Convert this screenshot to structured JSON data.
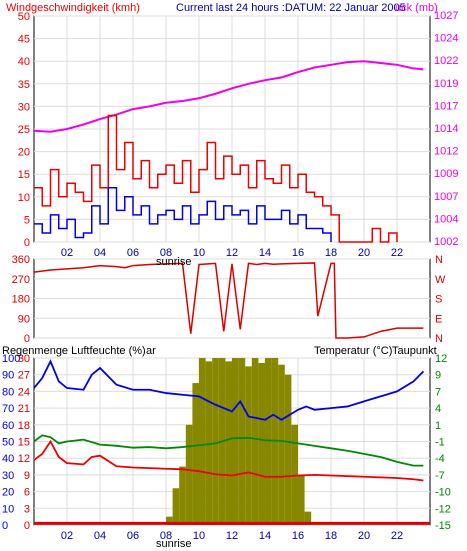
{
  "colors": {
    "wind_avg": "#0000ee",
    "wind_gust": "#ee0000",
    "pressure": "#ee00ee",
    "direction": "#dd0000",
    "humidity": "#0000ee",
    "temperature": "#008800",
    "dewpoint": "#ee0000",
    "rain": "#dd0000",
    "solar": "#888800",
    "grid": "#ffffff",
    "bg": "#ffffff",
    "frame": "#000000"
  },
  "header": {
    "top_left": "Windgeschwindigkeit (kmh)",
    "top_center": "Current last 24 hours :DATUM: 22 Januar 2005",
    "top_right": "uck (mb)"
  },
  "sunrise_label": "sunrise",
  "chart_data": [
    {
      "type": "line",
      "id": "wind_pressure",
      "title": "Windgeschwindigkeit (kmh)",
      "right_title": "uck (mb)",
      "x_ticks": [
        "02",
        "04",
        "06",
        "08",
        "10",
        "12",
        "14",
        "16",
        "18",
        "20",
        "22"
      ],
      "y_left_ticks": [
        "0",
        "5",
        "10",
        "15",
        "20",
        "25",
        "30",
        "35",
        "40",
        "45",
        "50"
      ],
      "y_left_range": [
        0,
        50
      ],
      "y_right_ticks": [
        "1002",
        "1004",
        "1007",
        "1009",
        "1012",
        "1014",
        "1017",
        "1019",
        "1022",
        "1024",
        "1027"
      ],
      "y_right_range": [
        1002,
        1027
      ],
      "x_range": [
        0,
        24
      ],
      "series": [
        {
          "key": "pressure",
          "axis": "right",
          "x": [
            0.0,
            1.0,
            2.0,
            3.0,
            4.0,
            5.0,
            6.0,
            7.0,
            8.0,
            9.0,
            10.0,
            11.0,
            12.0,
            13.0,
            14.0,
            15.0,
            16.0,
            17.0,
            18.0,
            19.0,
            20.0,
            21.0,
            22.0,
            23.0,
            23.6
          ],
          "y": [
            1014.3,
            1014.2,
            1014.5,
            1015.0,
            1015.6,
            1016.1,
            1016.7,
            1017.0,
            1017.4,
            1017.6,
            1017.9,
            1018.4,
            1019.0,
            1019.5,
            1019.9,
            1020.2,
            1020.8,
            1021.3,
            1021.6,
            1021.9,
            1022.0,
            1021.8,
            1021.6,
            1021.2,
            1021.1
          ]
        },
        {
          "key": "wind_gust",
          "axis": "left",
          "style": "step",
          "x": [
            0.0,
            0.5,
            1.0,
            1.5,
            2.0,
            2.5,
            3.0,
            3.5,
            4.0,
            4.5,
            5.0,
            5.5,
            6.0,
            6.5,
            7.0,
            7.5,
            8.0,
            8.5,
            9.0,
            9.5,
            10.0,
            10.5,
            11.0,
            11.5,
            12.0,
            12.5,
            13.0,
            13.5,
            14.0,
            14.5,
            15.0,
            15.5,
            16.0,
            16.5,
            17.0,
            17.5,
            18.0,
            18.5,
            19.0,
            19.5,
            20.0,
            20.5,
            21.0,
            21.5,
            22.0
          ],
          "y": [
            12,
            8,
            16,
            10,
            13,
            11,
            9,
            17,
            12,
            28,
            16,
            22,
            14,
            18,
            12,
            15,
            17,
            13,
            18,
            11,
            16,
            22,
            14,
            19,
            15,
            17,
            12,
            18,
            14,
            13,
            17,
            12,
            15,
            11,
            10,
            8,
            6,
            0,
            0,
            0,
            0,
            3,
            0,
            2,
            0
          ]
        },
        {
          "key": "wind_avg",
          "axis": "left",
          "style": "step",
          "x": [
            0.0,
            0.5,
            1.0,
            1.5,
            2.0,
            2.5,
            3.0,
            3.5,
            4.0,
            4.5,
            5.0,
            5.5,
            6.0,
            6.5,
            7.0,
            7.5,
            8.0,
            8.5,
            9.0,
            9.5,
            10.0,
            10.5,
            11.0,
            11.5,
            12.0,
            12.5,
            13.0,
            13.5,
            14.0,
            14.5,
            15.0,
            15.5,
            16.0,
            16.5,
            17.0,
            17.5,
            18.0
          ],
          "y": [
            4,
            2,
            6,
            3,
            5,
            1,
            2,
            8,
            4,
            12,
            7,
            10,
            6,
            8,
            4,
            6,
            7,
            5,
            8,
            4,
            6,
            9,
            5,
            8,
            6,
            7,
            4,
            8,
            5,
            5,
            7,
            4,
            6,
            3,
            3,
            2,
            0
          ]
        }
      ]
    },
    {
      "type": "line",
      "id": "direction",
      "y_left_ticks": [
        "0",
        "90",
        "180",
        "270",
        "360"
      ],
      "y_left_range": [
        0,
        360
      ],
      "y_right_ticks": [
        "N",
        "W",
        "S",
        "E",
        "N"
      ],
      "y_right_ticks_order": "top-to-bottom",
      "x_range": [
        0,
        24
      ],
      "series": [
        {
          "key": "direction",
          "x": [
            0.0,
            1.0,
            2.0,
            3.0,
            4.0,
            5.0,
            5.5,
            6.0,
            7.0,
            8.0,
            9.0,
            9.5,
            10.0,
            11.0,
            11.5,
            12.0,
            12.5,
            13.0,
            13.5,
            14.0,
            14.5,
            15.0,
            16.0,
            17.0,
            17.2,
            18.0,
            18.2,
            18.3,
            19.0,
            20.0,
            21.0,
            22.0,
            23.0,
            23.6
          ],
          "y": [
            300,
            310,
            315,
            320,
            330,
            325,
            320,
            330,
            335,
            338,
            340,
            20,
            335,
            340,
            30,
            338,
            40,
            340,
            335,
            340,
            336,
            338,
            340,
            342,
            100,
            340,
            340,
            0,
            0,
            5,
            30,
            45,
            45,
            45
          ]
        }
      ]
    },
    {
      "type": "line",
      "id": "humidity_temp",
      "title_left": "Regenmenge Luftfeuchte (%)",
      "title_left_overlay": "ar",
      "title_right": "Temperatur (°C)",
      "title_right2": "Taupunkt",
      "y_left_ticks_outer": [
        "0",
        "10",
        "20",
        "30",
        "40",
        "50",
        "60",
        "70",
        "80",
        "90",
        "100"
      ],
      "y_left_ticks_inner": [
        "0",
        "3",
        "6",
        "9",
        "12",
        "15",
        "18",
        "21",
        "24",
        "27",
        "30"
      ],
      "y_left_range": [
        0,
        100
      ],
      "y_right_ticks": [
        "-15",
        "-12",
        "-10",
        "-7",
        "-4",
        "-1",
        "1",
        "4",
        "7",
        "9",
        "12"
      ],
      "y_right_range": [
        -15,
        12
      ],
      "x_ticks": [
        "02",
        "04",
        "06",
        "08",
        "10",
        "12",
        "14",
        "16",
        "18",
        "20",
        "22"
      ],
      "x_range": [
        0,
        24
      ],
      "series": [
        {
          "key": "humidity",
          "axis": "left",
          "x": [
            0.0,
            0.5,
            1.0,
            1.5,
            2.0,
            3.0,
            3.5,
            4.0,
            5.0,
            6.0,
            7.0,
            8.0,
            9.0,
            10.0,
            11.0,
            12.0,
            12.5,
            13.0,
            14.0,
            14.5,
            15.0,
            16.0,
            16.5,
            17.0,
            18.0,
            19.0,
            20.0,
            21.0,
            22.0,
            23.0,
            23.6
          ],
          "y": [
            82,
            88,
            98,
            86,
            82,
            81,
            90,
            94,
            84,
            81,
            81,
            79,
            78,
            77,
            72,
            68,
            74,
            65,
            63,
            66,
            63,
            69,
            71,
            69,
            70,
            71,
            74,
            77,
            80,
            86,
            92
          ]
        },
        {
          "key": "temperature",
          "axis": "right",
          "x": [
            0.0,
            0.5,
            1.0,
            1.5,
            2.0,
            3.0,
            4.0,
            5.0,
            6.0,
            7.0,
            8.0,
            9.0,
            10.0,
            11.0,
            12.0,
            13.0,
            14.0,
            15.0,
            16.0,
            17.0,
            18.0,
            19.0,
            20.0,
            21.0,
            22.0,
            23.0,
            23.6
          ],
          "y": [
            -1.5,
            -0.5,
            -0.8,
            -1.8,
            -1.5,
            -1.2,
            -2.0,
            -2.2,
            -2.5,
            -2.4,
            -2.6,
            -2.4,
            -2.1,
            -1.8,
            -1.0,
            -0.9,
            -1.3,
            -1.4,
            -1.8,
            -2.2,
            -2.6,
            -3.0,
            -3.5,
            -4.0,
            -4.8,
            -5.4,
            -5.4
          ]
        },
        {
          "key": "dewpoint",
          "axis": "right",
          "x": [
            0.0,
            0.5,
            1.0,
            1.5,
            2.0,
            3.0,
            3.5,
            4.0,
            5.0,
            6.0,
            7.0,
            8.0,
            9.0,
            10.0,
            11.0,
            12.0,
            13.0,
            14.0,
            15.0,
            16.0,
            17.0,
            18.0,
            19.0,
            20.0,
            21.0,
            22.0,
            23.0,
            23.6
          ],
          "y": [
            -4.5,
            -3.5,
            -1.5,
            -4.0,
            -5.0,
            -5.2,
            -4.0,
            -3.8,
            -5.5,
            -5.7,
            -5.8,
            -5.9,
            -6.0,
            -6.3,
            -6.8,
            -7.0,
            -6.5,
            -7.2,
            -7.2,
            -7.0,
            -6.9,
            -7.0,
            -7.1,
            -7.2,
            -7.3,
            -7.4,
            -7.6,
            -7.8
          ]
        },
        {
          "key": "rain",
          "axis": "left",
          "x": [
            0.0,
            24.0
          ],
          "y": [
            1,
            1
          ]
        },
        {
          "key": "solar",
          "axis": "left",
          "style": "bars",
          "x": [
            8.2,
            8.6,
            9.0,
            9.4,
            9.8,
            10.2,
            10.6,
            11.0,
            11.4,
            11.8,
            12.2,
            12.6,
            13.0,
            13.4,
            13.8,
            14.2,
            14.6,
            15.0,
            15.4,
            15.8,
            16.2,
            16.6
          ],
          "y": [
            5,
            22,
            35,
            60,
            85,
            100,
            98,
            100,
            100,
            98,
            100,
            100,
            95,
            100,
            97,
            100,
            100,
            96,
            90,
            60,
            30,
            8
          ]
        }
      ]
    }
  ]
}
